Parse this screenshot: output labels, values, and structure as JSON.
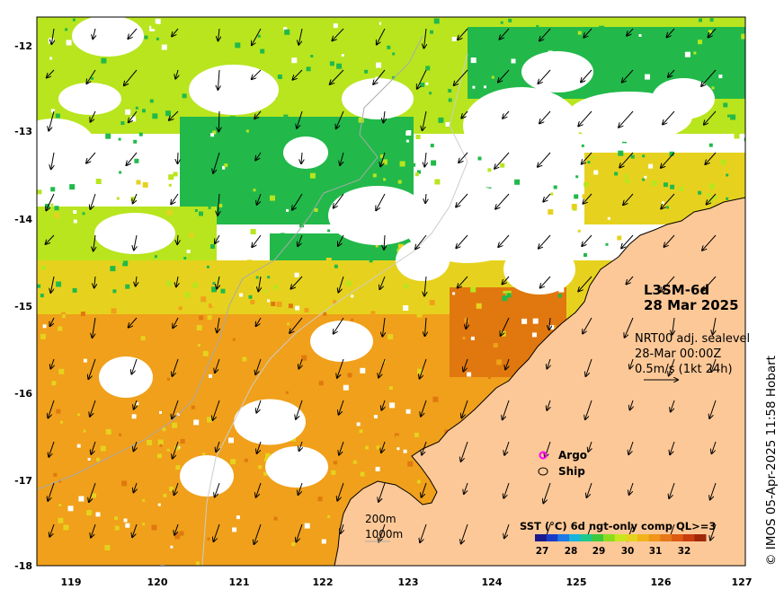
{
  "product": {
    "title": "L3SM-6d",
    "date": "28 Mar 2025"
  },
  "current": {
    "source": "NRT00 adj. sealevel",
    "time": "28-Mar 00:00Z",
    "scale": "0.5m/s (1kt 24h)"
  },
  "legend": {
    "argo": "Argo",
    "ship": "Ship"
  },
  "depth": {
    "shallow": "200m",
    "deep": "1000m"
  },
  "colorbar": {
    "title": "SST (°C) 6d ngt-only comp QL>=3",
    "ticks": [
      "27",
      "28",
      "29",
      "30",
      "31",
      "32"
    ]
  },
  "axes": {
    "y_ticks": [
      "-12",
      "-13",
      "-14",
      "-15",
      "-16",
      "-17",
      "-18"
    ],
    "x_ticks": [
      "119",
      "120",
      "121",
      "122",
      "123",
      "124",
      "125",
      "126",
      "127"
    ]
  },
  "credit": "© IMOS 05-Apr-2025 11:58 Hobart",
  "colors": {
    "land": "#fdc897",
    "missing": "#ffffff",
    "green": "#22b94a",
    "lime": "#b8e51e",
    "yellow": "#e6d21e",
    "orange": "#f0a01a",
    "darkorange": "#e0780f",
    "argo": "#ff00ff"
  }
}
